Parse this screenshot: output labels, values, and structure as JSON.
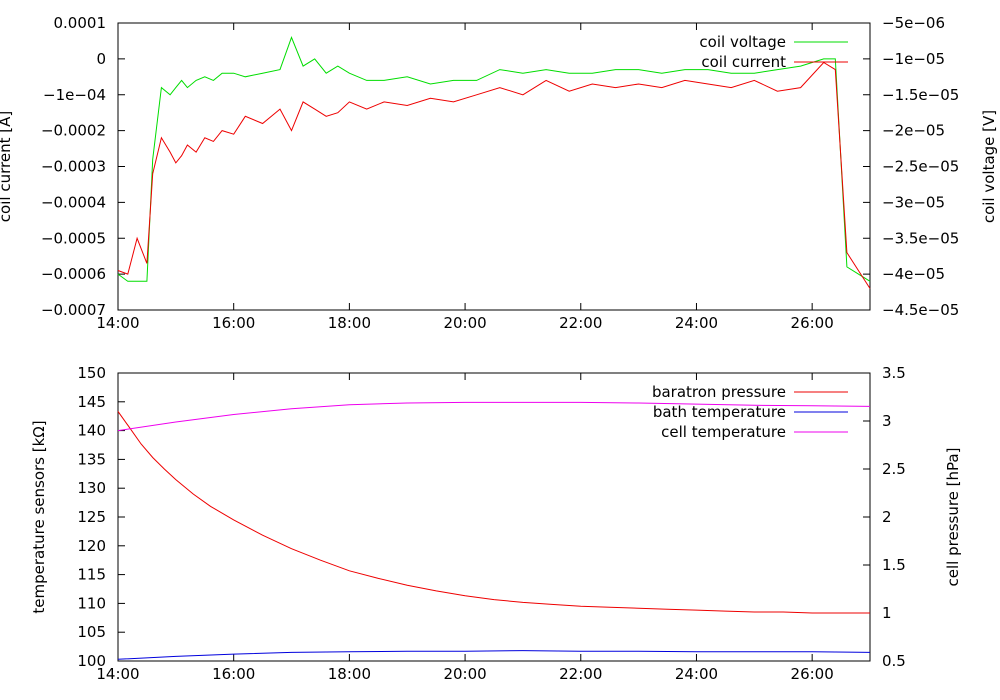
{
  "chart_data": [
    {
      "type": "line",
      "x_ticks": [
        "14:00",
        "16:00",
        "18:00",
        "20:00",
        "22:00",
        "24:00",
        "26:00"
      ],
      "x_tick_hours": [
        14,
        16,
        18,
        20,
        22,
        24,
        26
      ],
      "xlim_hours": [
        14,
        27
      ],
      "ylabel": "coil current [A]",
      "y2label": "coil voltage [V]",
      "ylim": [
        -0.0007,
        0.0001
      ],
      "y2lim": [
        -4.5e-05,
        -5e-06
      ],
      "y_ticks": [
        {
          "value": 0.0001,
          "label": "0.0001"
        },
        {
          "value": 0,
          "label": "0"
        },
        {
          "value": -0.0001,
          "label": "−1e−04"
        },
        {
          "value": -0.0002,
          "label": "−0.0002"
        },
        {
          "value": -0.0003,
          "label": "−0.0003"
        },
        {
          "value": -0.0004,
          "label": "−0.0004"
        },
        {
          "value": -0.0005,
          "label": "−0.0005"
        },
        {
          "value": -0.0006,
          "label": "−0.0006"
        },
        {
          "value": -0.0007,
          "label": "−0.0007"
        }
      ],
      "y2_ticks": [
        {
          "value": -5e-06,
          "label": "−5e−06"
        },
        {
          "value": -1e-05,
          "label": "−1e−05"
        },
        {
          "value": -1.5e-05,
          "label": "−1.5e−05"
        },
        {
          "value": -2e-05,
          "label": "−2e−05"
        },
        {
          "value": -2.5e-05,
          "label": "−2.5e−05"
        },
        {
          "value": -3e-05,
          "label": "−3e−05"
        },
        {
          "value": -3.5e-05,
          "label": "−3.5e−05"
        },
        {
          "value": -4e-05,
          "label": "−4e−05"
        },
        {
          "value": -4.5e-05,
          "label": "−4.5e−05"
        }
      ],
      "grid": false,
      "legend_position": "top-right",
      "series": [
        {
          "name": "coil voltage",
          "axis": "y2",
          "color": "#00dd00",
          "x": [
            14.0,
            14.17,
            14.33,
            14.5,
            14.6,
            14.75,
            14.9,
            15.0,
            15.1,
            15.2,
            15.35,
            15.5,
            15.65,
            15.8,
            16.0,
            16.2,
            16.5,
            16.8,
            17.0,
            17.2,
            17.4,
            17.6,
            17.8,
            18.0,
            18.3,
            18.6,
            19.0,
            19.4,
            19.8,
            20.2,
            20.6,
            21.0,
            21.4,
            21.8,
            22.2,
            22.6,
            23.0,
            23.4,
            23.8,
            24.2,
            24.6,
            25.0,
            25.4,
            25.8,
            26.2,
            26.4,
            26.6,
            26.8,
            27.0
          ],
          "y": [
            -4e-05,
            -4.1e-05,
            -4.1e-05,
            -4.1e-05,
            -2.4e-05,
            -1.4e-05,
            -1.5e-05,
            -1.4e-05,
            -1.3e-05,
            -1.4e-05,
            -1.3e-05,
            -1.25e-05,
            -1.3e-05,
            -1.2e-05,
            -1.2e-05,
            -1.25e-05,
            -1.2e-05,
            -1.15e-05,
            -7e-06,
            -1.1e-05,
            -1e-05,
            -1.2e-05,
            -1.1e-05,
            -1.2e-05,
            -1.3e-05,
            -1.3e-05,
            -1.25e-05,
            -1.35e-05,
            -1.3e-05,
            -1.3e-05,
            -1.15e-05,
            -1.2e-05,
            -1.15e-05,
            -1.2e-05,
            -1.2e-05,
            -1.15e-05,
            -1.15e-05,
            -1.2e-05,
            -1.15e-05,
            -1.15e-05,
            -1.2e-05,
            -1.2e-05,
            -1.15e-05,
            -1.1e-05,
            -1e-05,
            -1e-05,
            -3.9e-05,
            -4e-05,
            -4.1e-05
          ]
        },
        {
          "name": "coil current",
          "axis": "y",
          "color": "#ee0000",
          "x": [
            14.0,
            14.17,
            14.33,
            14.5,
            14.6,
            14.75,
            14.9,
            15.0,
            15.1,
            15.2,
            15.35,
            15.5,
            15.65,
            15.8,
            16.0,
            16.2,
            16.5,
            16.8,
            17.0,
            17.2,
            17.4,
            17.6,
            17.8,
            18.0,
            18.3,
            18.6,
            19.0,
            19.4,
            19.8,
            20.2,
            20.6,
            21.0,
            21.4,
            21.8,
            22.2,
            22.6,
            23.0,
            23.4,
            23.8,
            24.2,
            24.6,
            25.0,
            25.4,
            25.8,
            26.2,
            26.4,
            26.6,
            26.8,
            27.0
          ],
          "y": [
            -0.00059,
            -0.0006,
            -0.0005,
            -0.00057,
            -0.00032,
            -0.00022,
            -0.00026,
            -0.00029,
            -0.00027,
            -0.00024,
            -0.00026,
            -0.00022,
            -0.00023,
            -0.0002,
            -0.00021,
            -0.00016,
            -0.00018,
            -0.00014,
            -0.0002,
            -0.00012,
            -0.00014,
            -0.00016,
            -0.00015,
            -0.00012,
            -0.00014,
            -0.00012,
            -0.00013,
            -0.00011,
            -0.00012,
            -0.0001,
            -8e-05,
            -0.0001,
            -6e-05,
            -9e-05,
            -7e-05,
            -8e-05,
            -7e-05,
            -8e-05,
            -6e-05,
            -7e-05,
            -8e-05,
            -6e-05,
            -9e-05,
            -8e-05,
            -1e-05,
            -3e-05,
            -0.00054,
            -0.00059,
            -0.00064
          ]
        }
      ]
    },
    {
      "type": "line",
      "x_ticks": [
        "14:00",
        "16:00",
        "18:00",
        "20:00",
        "22:00",
        "24:00",
        "26:00"
      ],
      "x_tick_hours": [
        14,
        16,
        18,
        20,
        22,
        24,
        26
      ],
      "xlim_hours": [
        14,
        27
      ],
      "ylabel": "temperature sensors [kΩ]",
      "y2label": "cell pressure [hPa]",
      "ylim": [
        100,
        150
      ],
      "y2lim": [
        0.5,
        3.5
      ],
      "y_ticks": [
        {
          "value": 150,
          "label": "150"
        },
        {
          "value": 145,
          "label": "145"
        },
        {
          "value": 140,
          "label": "140"
        },
        {
          "value": 135,
          "label": "135"
        },
        {
          "value": 130,
          "label": "130"
        },
        {
          "value": 125,
          "label": "125"
        },
        {
          "value": 120,
          "label": "120"
        },
        {
          "value": 115,
          "label": "115"
        },
        {
          "value": 110,
          "label": "110"
        },
        {
          "value": 105,
          "label": "105"
        },
        {
          "value": 100,
          "label": "100"
        }
      ],
      "y2_ticks": [
        {
          "value": 3.5,
          "label": "3.5"
        },
        {
          "value": 3,
          "label": "3"
        },
        {
          "value": 2.5,
          "label": "2.5"
        },
        {
          "value": 2,
          "label": "2"
        },
        {
          "value": 1.5,
          "label": "1.5"
        },
        {
          "value": 1,
          "label": "1"
        },
        {
          "value": 0.5,
          "label": "0.5"
        }
      ],
      "grid": false,
      "legend_position": "top-right",
      "series": [
        {
          "name": "baratron pressure",
          "axis": "y2",
          "color": "#ee0000",
          "x": [
            14.0,
            14.2,
            14.4,
            14.6,
            14.8,
            15.0,
            15.3,
            15.6,
            16.0,
            16.5,
            17.0,
            17.5,
            18.0,
            18.5,
            19.0,
            19.5,
            20.0,
            20.5,
            21.0,
            21.5,
            22.0,
            22.5,
            23.0,
            23.5,
            24.0,
            24.5,
            25.0,
            25.5,
            26.0,
            26.5,
            27.0
          ],
          "y": [
            3.1,
            2.93,
            2.76,
            2.62,
            2.5,
            2.39,
            2.24,
            2.11,
            1.97,
            1.81,
            1.67,
            1.55,
            1.44,
            1.36,
            1.29,
            1.23,
            1.18,
            1.14,
            1.11,
            1.09,
            1.07,
            1.06,
            1.05,
            1.04,
            1.03,
            1.02,
            1.01,
            1.01,
            1.0,
            1.0,
            1.0
          ]
        },
        {
          "name": "bath temperature",
          "axis": "y",
          "color": "#0000dd",
          "x": [
            14.0,
            15.0,
            16.0,
            17.0,
            18.0,
            19.0,
            20.0,
            21.0,
            22.0,
            23.0,
            24.0,
            25.0,
            26.0,
            27.0
          ],
          "y": [
            100.3,
            100.8,
            101.2,
            101.5,
            101.6,
            101.7,
            101.7,
            101.8,
            101.7,
            101.7,
            101.6,
            101.6,
            101.6,
            101.5
          ]
        },
        {
          "name": "cell temperature",
          "axis": "y",
          "color": "#ee00ee",
          "x": [
            14.0,
            15.0,
            16.0,
            17.0,
            18.0,
            19.0,
            20.0,
            21.0,
            22.0,
            23.0,
            24.0,
            25.0,
            26.0,
            27.0
          ],
          "y": [
            140.0,
            141.5,
            142.8,
            143.8,
            144.5,
            144.8,
            144.9,
            144.9,
            144.9,
            144.8,
            144.6,
            144.4,
            144.3,
            144.2
          ]
        }
      ]
    }
  ]
}
